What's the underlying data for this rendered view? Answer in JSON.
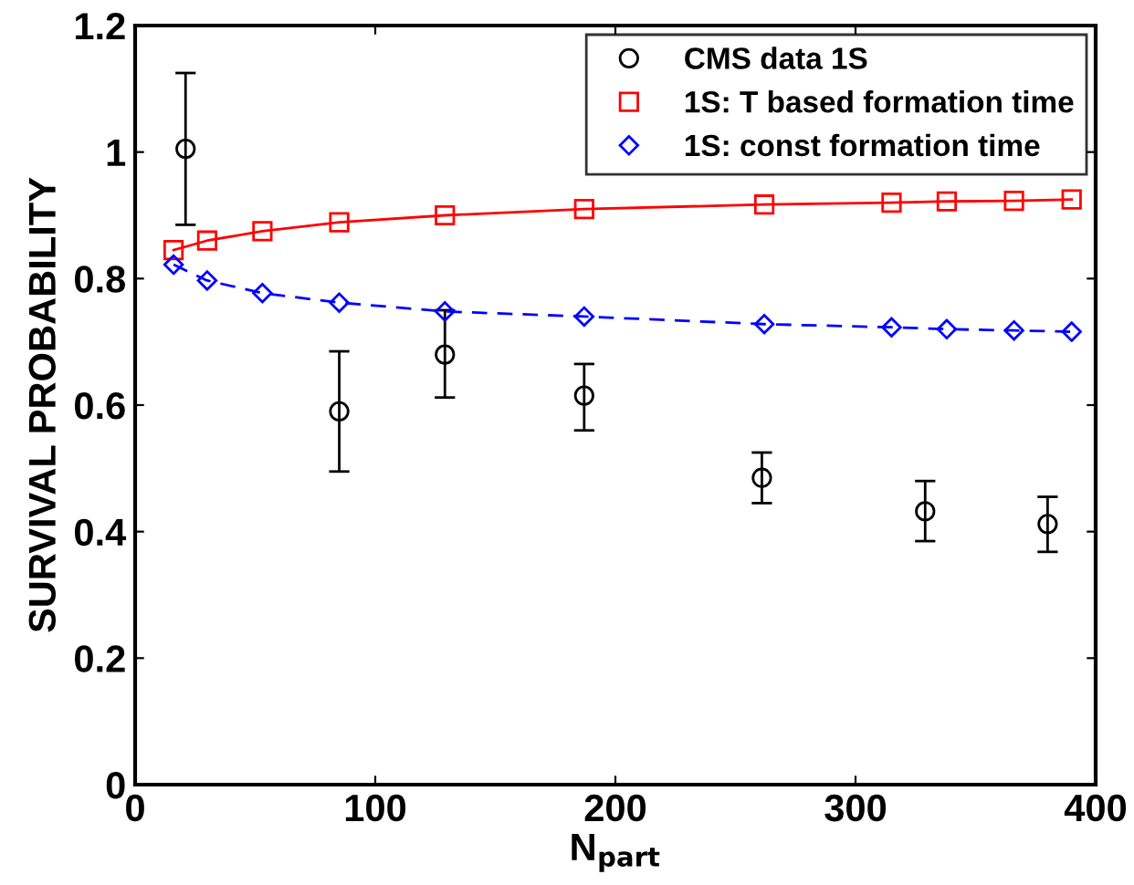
{
  "chart_data": {
    "type": "scatter",
    "xlabel": "N$_{part}$",
    "ylabel": "SURVIVAL PROBABILITY",
    "xlim": [
      0,
      400
    ],
    "ylim": [
      0,
      1.2
    ],
    "xticks": [
      0,
      100,
      200,
      300,
      400
    ],
    "yticks": [
      0,
      0.2,
      0.4,
      0.6,
      0.8,
      1,
      1.2
    ],
    "grid": false,
    "legend": "top right",
    "series": [
      {
        "name": "CMS data 1S",
        "color": "#000000",
        "marker": "circle",
        "x": [
          21,
          85,
          129,
          187,
          261,
          329,
          380
        ],
        "values": [
          1.005,
          0.59,
          0.68,
          0.615,
          0.485,
          0.432,
          0.412
        ],
        "errors": [
          [
            0.885,
            1.125
          ],
          [
            0.495,
            0.685
          ],
          [
            0.612,
            0.75
          ],
          [
            0.56,
            0.665
          ],
          [
            0.445,
            0.525
          ],
          [
            0.385,
            0.48
          ],
          [
            0.368,
            0.455
          ]
        ]
      },
      {
        "name": "1S: T based formation time",
        "type": "line",
        "color": "#ff0000",
        "marker": "square",
        "line_style": "solid",
        "x": [
          16,
          30,
          53,
          85,
          129,
          187,
          262,
          315,
          338,
          366,
          390
        ],
        "values": [
          0.845,
          0.86,
          0.875,
          0.889,
          0.9,
          0.91,
          0.917,
          0.92,
          0.922,
          0.923,
          0.925
        ]
      },
      {
        "name": "1S: const formation time",
        "type": "line",
        "color": "#0000ff",
        "marker": "diamond",
        "line_style": "dashed",
        "x": [
          16,
          30,
          53,
          85,
          129,
          187,
          262,
          315,
          338,
          366,
          390
        ],
        "values": [
          0.822,
          0.797,
          0.777,
          0.762,
          0.748,
          0.74,
          0.728,
          0.723,
          0.72,
          0.718,
          0.716
        ]
      }
    ]
  }
}
